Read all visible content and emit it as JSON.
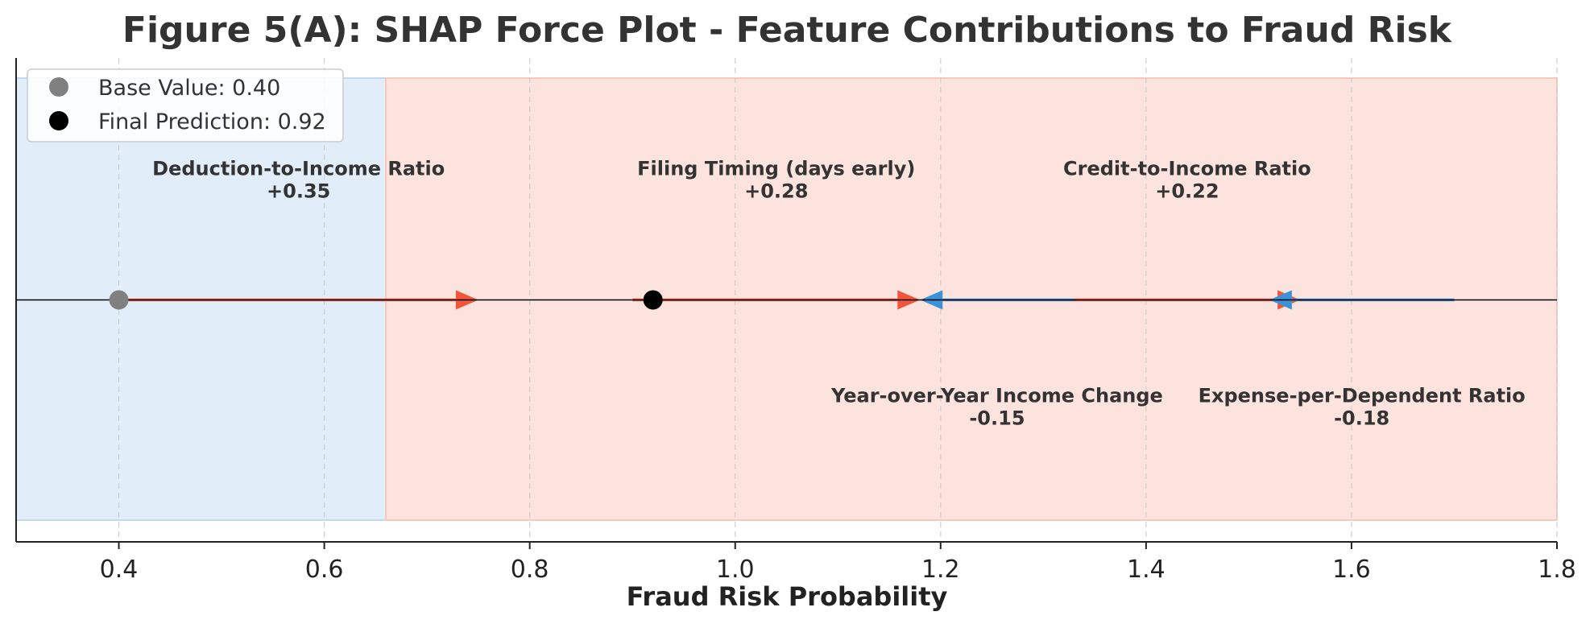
{
  "chart_data": {
    "type": "force",
    "title": "Figure 5(A): SHAP Force Plot - Feature Contributions to Fraud Risk",
    "xlabel": "Fraud Risk Probability",
    "ylabel": "",
    "xlim": [
      0.3,
      1.8
    ],
    "ylim": [
      -1,
      1
    ],
    "xticks": [
      0.4,
      0.6,
      0.8,
      1.0,
      1.2,
      1.4,
      1.6,
      1.8
    ],
    "xtick_labels": [
      "0.4",
      "0.6",
      "0.8",
      "1.0",
      "1.2",
      "1.4",
      "1.6",
      "1.8"
    ],
    "grid": "vertical dashed",
    "legend_position": "top-left",
    "base_value": 0.4,
    "final_prediction": 0.92,
    "regions": [
      {
        "x0": 0.3,
        "x1": 0.66,
        "color": "#e1eefa"
      },
      {
        "x0": 0.66,
        "x1": 1.8,
        "color": "#fde3dd"
      }
    ],
    "features": [
      {
        "name": "Deduction-to-Income Ratio",
        "value_label": "+0.35",
        "value": 0.35,
        "start": 0.4,
        "end": 0.75,
        "label_x": 0.575,
        "label_y": 0.47,
        "color": "#f4553a"
      },
      {
        "name": "Filing Timing (days early)",
        "value_label": "+0.28",
        "value": 0.28,
        "start": 0.9,
        "end": 1.18,
        "label_x": 1.04,
        "label_y": 0.47,
        "color": "#f4553a"
      },
      {
        "name": "Credit-to-Income Ratio",
        "value_label": "+0.22",
        "value": 0.22,
        "start": 1.33,
        "end": 1.55,
        "label_x": 1.44,
        "label_y": 0.47,
        "color": "#f4553a"
      },
      {
        "name": "Year-over-Year Income Change",
        "value_label": "-0.15",
        "value": -0.15,
        "start": 1.33,
        "end": 1.18,
        "label_x": 1.255,
        "label_y": -0.47,
        "color": "#3a93d9"
      },
      {
        "name": "Expense-per-Dependent Ratio",
        "value_label": "-0.18",
        "value": -0.18,
        "start": 1.7,
        "end": 1.52,
        "label_x": 1.61,
        "label_y": -0.47,
        "color": "#3a93d9"
      }
    ],
    "legend": [
      {
        "label": "Base Value: 0.40",
        "color": "#808080"
      },
      {
        "label": "Final Prediction: 0.92",
        "color": "#000000"
      }
    ]
  }
}
